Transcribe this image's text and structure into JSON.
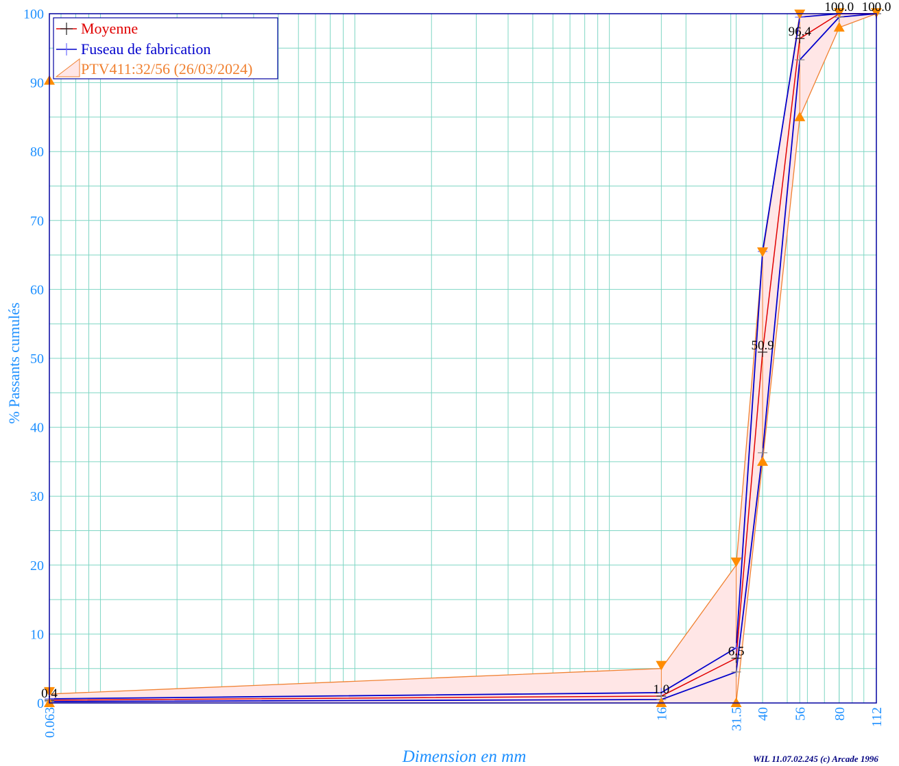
{
  "chart_data": {
    "type": "line",
    "x_scale": "log",
    "xlim": [
      0.063,
      112
    ],
    "ylim": [
      0,
      100
    ],
    "x_ticks": [
      0.063,
      16,
      31.5,
      40,
      56,
      80,
      112
    ],
    "x_tick_labels": [
      "0.063",
      "16",
      "31.5",
      "40",
      "56",
      "80",
      "112"
    ],
    "y_ticks": [
      0,
      10,
      20,
      30,
      40,
      50,
      60,
      70,
      80,
      90,
      100
    ],
    "y_tick_labels": [
      "0",
      "10",
      "20",
      "30",
      "40",
      "50",
      "60",
      "70",
      "80",
      "90",
      "100"
    ],
    "xlabel": "Dimension en mm",
    "ylabel": "% Passants cumulés",
    "grid": true,
    "legend_position": "top-left",
    "series": [
      {
        "name": "Moyenne",
        "color": "#e00000",
        "x": [
          0.063,
          16,
          31.5,
          40,
          56,
          80,
          112
        ],
        "y": [
          0.4,
          1.0,
          6.5,
          50.9,
          96.4,
          100.0,
          100.0
        ]
      },
      {
        "name": "Fuseau de fabrication",
        "color": "#0000cc",
        "upper": {
          "x": [
            0.063,
            16,
            31.5,
            40,
            56,
            80,
            112
          ],
          "y": [
            0.6,
            1.5,
            8.0,
            65.5,
            99.5,
            100.0,
            100.0
          ]
        },
        "lower": {
          "x": [
            0.063,
            16,
            31.5,
            40,
            56,
            80,
            112
          ],
          "y": [
            0.2,
            0.5,
            4.5,
            36.3,
            93.3,
            99.5,
            100.0
          ]
        }
      },
      {
        "name": "PTV411:32/56 (26/03/2024)",
        "color": "#f08030",
        "fill": "#ffe6e6",
        "upper": {
          "x": [
            0.063,
            16,
            31.5,
            40,
            56,
            80,
            112
          ],
          "y": [
            1.3,
            5.0,
            20.0,
            65.0,
            100.0,
            100.0,
            100.0
          ]
        },
        "lower": {
          "x": [
            0.063,
            16,
            31.5,
            40,
            56,
            80,
            112
          ],
          "y": [
            0.0,
            0.0,
            0.0,
            35.0,
            85.0,
            98.0,
            100.0
          ]
        }
      }
    ],
    "data_labels": [
      {
        "x": 0.063,
        "y": 0.4,
        "text": "0.4"
      },
      {
        "x": 16,
        "y": 1.0,
        "text": "1.0"
      },
      {
        "x": 31.5,
        "y": 6.5,
        "text": "6.5"
      },
      {
        "x": 40,
        "y": 50.9,
        "text": "50.9"
      },
      {
        "x": 56,
        "y": 96.4,
        "text": "96.4"
      },
      {
        "x": 80,
        "y": 100.0,
        "text": "100.0"
      },
      {
        "x": 112,
        "y": 100.0,
        "text": "100.0"
      }
    ],
    "marker_color": "#ff8c00",
    "marker_points": {
      "up": [
        [
          0.063,
          0
        ],
        [
          16,
          0
        ],
        [
          31.5,
          0
        ],
        [
          40,
          35
        ],
        [
          56,
          85
        ],
        [
          80,
          98
        ],
        [
          0.063,
          90.3
        ]
      ],
      "down": [
        [
          0.063,
          1.5
        ],
        [
          16,
          5.3
        ],
        [
          31.5,
          20.3
        ],
        [
          40,
          65.3
        ],
        [
          56,
          99.8
        ],
        [
          80,
          100
        ],
        [
          112,
          100
        ]
      ]
    }
  },
  "footer": "WIL 11.07.02.245 (c) Arcade 1996"
}
